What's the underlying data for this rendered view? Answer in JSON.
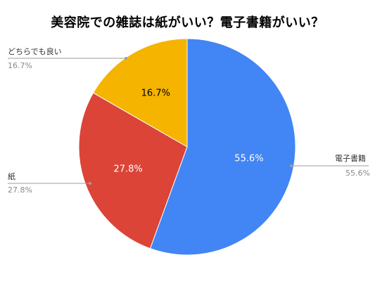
{
  "chart_data": {
    "type": "pie",
    "title": "美容院での雑誌は紙がいい？電子書籍がいい？",
    "slices": [
      {
        "name": "電子書籍",
        "value": 55.6,
        "label": "55.6%",
        "color": "#4285f4",
        "label_color": "#ffffff"
      },
      {
        "name": "紙",
        "value": 27.8,
        "label": "27.8%",
        "color": "#db4437",
        "label_color": "#ffffff"
      },
      {
        "name": "どちらでも良い",
        "value": 16.7,
        "label": "16.7%",
        "color": "#f4b400",
        "label_color": "#000000"
      }
    ],
    "start_angle_deg": 0,
    "direction": "clockwise",
    "legend": "callout labels outside slices"
  }
}
